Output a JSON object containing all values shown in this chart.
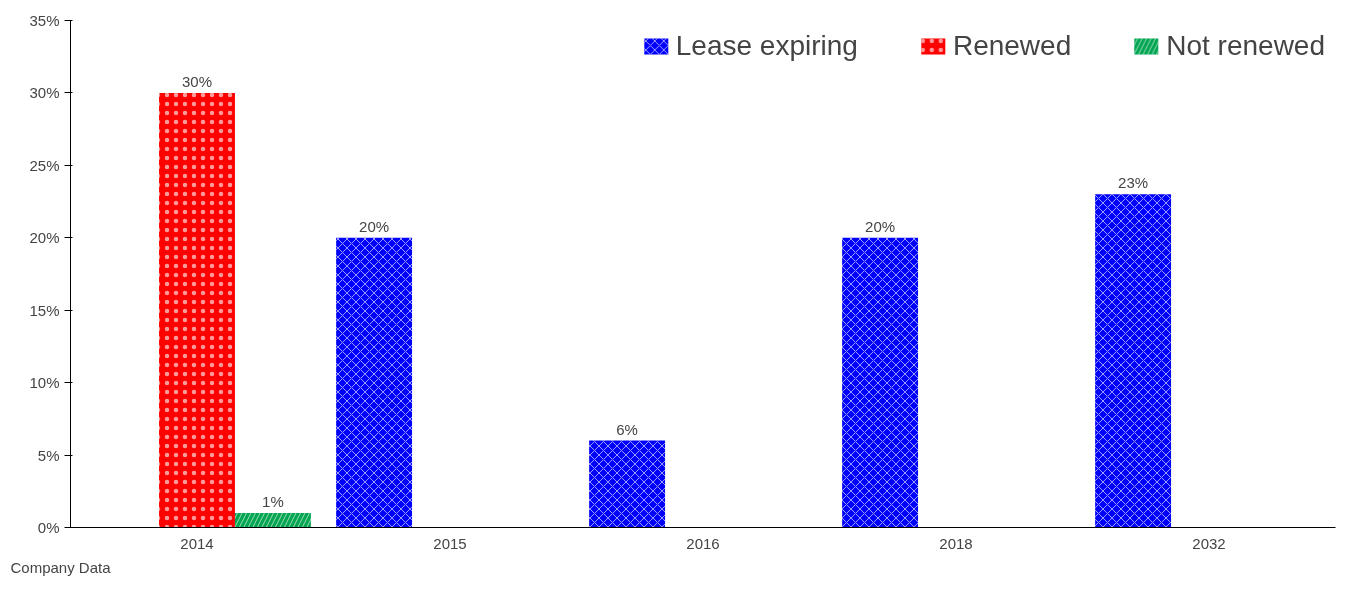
{
  "chart_data": {
    "type": "bar",
    "categories": [
      "2014",
      "2015",
      "2016",
      "2018",
      "2032"
    ],
    "series": [
      {
        "name": "Lease expiring",
        "color": "#0000ff",
        "values": [
          null,
          20,
          6,
          20,
          23
        ],
        "value_labels": [
          null,
          "20%",
          "6%",
          "20%",
          "23%"
        ]
      },
      {
        "name": "Renewed",
        "color": "#ff0000",
        "values": [
          30,
          null,
          null,
          null,
          null
        ],
        "value_labels": [
          "30%",
          null,
          null,
          null,
          null
        ]
      },
      {
        "name": "Not renewed",
        "color": "#00a550",
        "values": [
          1,
          null,
          null,
          null,
          null
        ],
        "value_labels": [
          "1%",
          null,
          null,
          null,
          null
        ]
      }
    ],
    "ylim": [
      0,
      35
    ],
    "yticks": [
      {
        "value": 0,
        "label": "0%"
      },
      {
        "value": 5,
        "label": "5%"
      },
      {
        "value": 10,
        "label": "10%"
      },
      {
        "value": 15,
        "label": "15%"
      },
      {
        "value": 20,
        "label": "20%"
      },
      {
        "value": 25,
        "label": "25%"
      },
      {
        "value": 30,
        "label": "30%"
      },
      {
        "value": 35,
        "label": "35%"
      }
    ],
    "grid": false,
    "legend": "top right",
    "annotations": [
      "Company Data"
    ]
  }
}
